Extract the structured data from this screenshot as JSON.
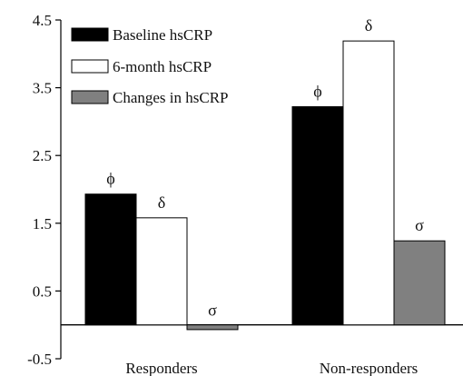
{
  "chart_data": {
    "type": "bar",
    "categories": [
      "Responders",
      "Non-responders"
    ],
    "series": [
      {
        "name": "Baseline hsCRP",
        "values": [
          1.93,
          3.22
        ],
        "markers": [
          "ϕ",
          "ϕ"
        ],
        "color": "#000000"
      },
      {
        "name": "6-month hsCRP",
        "values": [
          1.58,
          4.19
        ],
        "markers": [
          "δ",
          "δ"
        ],
        "color": "#ffffff"
      },
      {
        "name": "Changes in hsCRP",
        "values": [
          -0.07,
          1.24
        ],
        "markers": [
          "σ",
          "σ"
        ],
        "color": "#808080"
      }
    ],
    "yticks": [
      "4.5",
      "3.5",
      "2.5",
      "1.5",
      "0.5",
      "-0.5"
    ],
    "ylim": [
      -0.5,
      4.5
    ],
    "title": "",
    "xlabel": "",
    "ylabel": "",
    "legend_position": "top-left",
    "grid": false
  }
}
